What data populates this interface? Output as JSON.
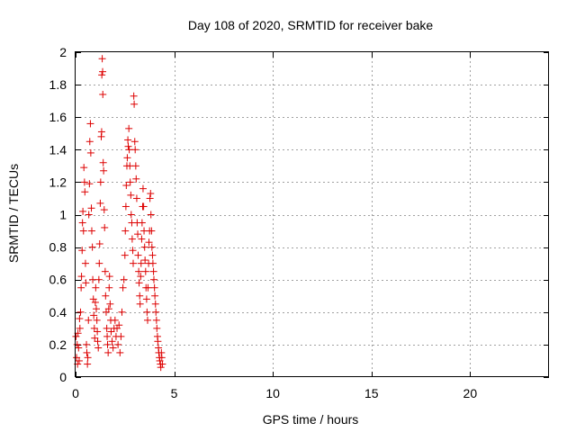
{
  "chart_data": {
    "type": "scatter",
    "title": "Day 108 of 2020, SRMTID for receiver bake",
    "xlabel": "GPS time / hours",
    "ylabel": "SRMTID / TECUs",
    "xlim": [
      0,
      24
    ],
    "ylim": [
      0,
      2
    ],
    "xticks": [
      0,
      5,
      10,
      15,
      20
    ],
    "xtick_labels": [
      "0",
      "5",
      "10",
      "15",
      "20"
    ],
    "yticks": [
      0,
      0.2,
      0.4,
      0.6,
      0.8,
      1,
      1.2,
      1.4,
      1.6,
      1.8,
      2
    ],
    "ytick_labels": [
      "0",
      "0.2",
      "0.4",
      "0.6",
      "0.8",
      "1",
      "1.2",
      "1.4",
      "1.6",
      "1.8",
      "2"
    ],
    "grid": true,
    "marker": "+",
    "series_color": "#dd0000",
    "series": [
      {
        "name": "SRMTID",
        "points": [
          [
            0.02,
            0.25
          ],
          [
            0.05,
            0.12
          ],
          [
            0.08,
            0.2
          ],
          [
            0.1,
            0.08
          ],
          [
            0.12,
            0.27
          ],
          [
            0.15,
            0.18
          ],
          [
            0.18,
            0.1
          ],
          [
            0.2,
            0.36
          ],
          [
            0.22,
            0.3
          ],
          [
            0.25,
            0.4
          ],
          [
            0.28,
            0.55
          ],
          [
            0.3,
            0.62
          ],
          [
            0.33,
            0.78
          ],
          [
            0.35,
            0.95
          ],
          [
            0.37,
            1.02
          ],
          [
            0.4,
            0.9
          ],
          [
            0.42,
            1.29
          ],
          [
            0.45,
            1.2
          ],
          [
            0.47,
            1.14
          ],
          [
            0.5,
            0.7
          ],
          [
            0.52,
            0.58
          ],
          [
            0.55,
            0.2
          ],
          [
            0.57,
            0.15
          ],
          [
            0.6,
            0.08
          ],
          [
            0.62,
            0.12
          ],
          [
            0.65,
            0.35
          ],
          [
            0.67,
            1.0
          ],
          [
            0.7,
            1.19
          ],
          [
            0.72,
            1.45
          ],
          [
            0.75,
            1.56
          ],
          [
            0.77,
            1.38
          ],
          [
            0.8,
            1.04
          ],
          [
            0.82,
            0.9
          ],
          [
            0.85,
            0.8
          ],
          [
            0.87,
            0.6
          ],
          [
            0.9,
            0.48
          ],
          [
            0.92,
            0.38
          ],
          [
            0.95,
            0.3
          ],
          [
            0.97,
            0.24
          ],
          [
            1.0,
            0.46
          ],
          [
            1.02,
            0.55
          ],
          [
            1.05,
            0.42
          ],
          [
            1.08,
            0.35
          ],
          [
            1.1,
            0.28
          ],
          [
            1.12,
            0.22
          ],
          [
            1.15,
            0.18
          ],
          [
            1.18,
            0.6
          ],
          [
            1.2,
            0.7
          ],
          [
            1.22,
            0.82
          ],
          [
            1.25,
            1.07
          ],
          [
            1.27,
            1.2
          ],
          [
            1.3,
            1.48
          ],
          [
            1.32,
            1.51
          ],
          [
            1.33,
            1.86
          ],
          [
            1.35,
            1.96
          ],
          [
            1.37,
            1.88
          ],
          [
            1.38,
            1.74
          ],
          [
            1.4,
            1.32
          ],
          [
            1.42,
            1.27
          ],
          [
            1.45,
            1.03
          ],
          [
            1.47,
            0.92
          ],
          [
            1.5,
            0.65
          ],
          [
            1.52,
            0.5
          ],
          [
            1.55,
            0.4
          ],
          [
            1.58,
            0.3
          ],
          [
            1.6,
            0.25
          ],
          [
            1.62,
            0.2
          ],
          [
            1.65,
            0.15
          ],
          [
            1.68,
            0.42
          ],
          [
            1.7,
            0.55
          ],
          [
            1.72,
            0.62
          ],
          [
            1.75,
            0.45
          ],
          [
            1.78,
            0.35
          ],
          [
            1.8,
            0.28
          ],
          [
            1.85,
            0.22
          ],
          [
            1.9,
            0.18
          ],
          [
            1.95,
            0.3
          ],
          [
            2.0,
            0.35
          ],
          [
            2.05,
            0.25
          ],
          [
            2.1,
            0.3
          ],
          [
            2.15,
            0.2
          ],
          [
            2.2,
            0.32
          ],
          [
            2.25,
            0.15
          ],
          [
            2.3,
            0.25
          ],
          [
            2.35,
            0.4
          ],
          [
            2.4,
            0.55
          ],
          [
            2.45,
            0.6
          ],
          [
            2.5,
            0.75
          ],
          [
            2.52,
            0.9
          ],
          [
            2.55,
            1.05
          ],
          [
            2.57,
            1.18
          ],
          [
            2.6,
            1.3
          ],
          [
            2.62,
            1.35
          ],
          [
            2.65,
            1.46
          ],
          [
            2.67,
            1.42
          ],
          [
            2.7,
            1.53
          ],
          [
            2.72,
            1.4
          ],
          [
            2.75,
            1.3
          ],
          [
            2.77,
            1.2
          ],
          [
            2.8,
            1.12
          ],
          [
            2.82,
            1.0
          ],
          [
            2.85,
            0.95
          ],
          [
            2.87,
            0.85
          ],
          [
            2.9,
            0.78
          ],
          [
            2.92,
            0.7
          ],
          [
            2.95,
            1.73
          ],
          [
            2.97,
            1.68
          ],
          [
            3.0,
            1.45
          ],
          [
            3.02,
            1.4
          ],
          [
            3.05,
            1.3
          ],
          [
            3.07,
            1.22
          ],
          [
            3.1,
            1.1
          ],
          [
            3.12,
            0.95
          ],
          [
            3.15,
            0.88
          ],
          [
            3.17,
            0.75
          ],
          [
            3.2,
            0.65
          ],
          [
            3.22,
            0.58
          ],
          [
            3.25,
            0.5
          ],
          [
            3.27,
            0.45
          ],
          [
            3.3,
            0.62
          ],
          [
            3.32,
            0.7
          ],
          [
            3.35,
            0.85
          ],
          [
            3.37,
            0.95
          ],
          [
            3.4,
            1.05
          ],
          [
            3.42,
            1.16
          ],
          [
            3.45,
            1.05
          ],
          [
            3.47,
            0.9
          ],
          [
            3.5,
            0.8
          ],
          [
            3.52,
            0.72
          ],
          [
            3.55,
            0.65
          ],
          [
            3.57,
            0.55
          ],
          [
            3.6,
            0.48
          ],
          [
            3.62,
            0.4
          ],
          [
            3.65,
            0.35
          ],
          [
            3.67,
            0.55
          ],
          [
            3.7,
            0.7
          ],
          [
            3.72,
            0.83
          ],
          [
            3.75,
            0.9
          ],
          [
            3.77,
            1.1
          ],
          [
            3.8,
            1.13
          ],
          [
            3.82,
            1.0
          ],
          [
            3.85,
            0.9
          ],
          [
            3.87,
            0.8
          ],
          [
            3.9,
            0.75
          ],
          [
            3.92,
            0.7
          ],
          [
            3.95,
            0.65
          ],
          [
            3.97,
            0.6
          ],
          [
            4.0,
            0.55
          ],
          [
            4.02,
            0.5
          ],
          [
            4.05,
            0.45
          ],
          [
            4.07,
            0.4
          ],
          [
            4.1,
            0.35
          ],
          [
            4.12,
            0.3
          ],
          [
            4.15,
            0.25
          ],
          [
            4.17,
            0.22
          ],
          [
            4.2,
            0.18
          ],
          [
            4.22,
            0.15
          ],
          [
            4.25,
            0.12
          ],
          [
            4.27,
            0.1
          ],
          [
            4.3,
            0.08
          ],
          [
            4.32,
            0.06
          ],
          [
            4.35,
            0.15
          ],
          [
            4.37,
            0.12
          ],
          [
            4.4,
            0.08
          ]
        ]
      }
    ]
  }
}
